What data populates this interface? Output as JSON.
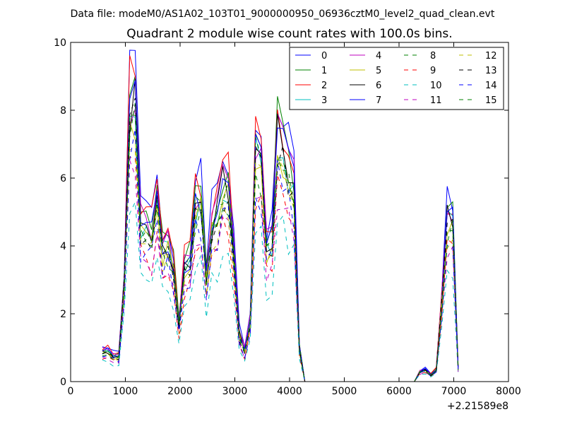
{
  "figure": {
    "suptitle": "Data file: modeM0/AS1A02_103T01_9000000950_06936cztM0_level2_quad_clean.evt"
  },
  "chart_data": {
    "type": "line",
    "title": "Quadrant 2 module wise count rates with 100.0s bins.",
    "xlabel": "",
    "ylabel": "",
    "xlim": [
      0,
      8000
    ],
    "ylim": [
      0,
      10
    ],
    "xticks": [
      0,
      1000,
      2000,
      3000,
      4000,
      5000,
      6000,
      7000,
      8000
    ],
    "yticks": [
      0,
      2,
      4,
      6,
      8,
      10
    ],
    "x_offset_label": "+2.21589e8",
    "grid": false,
    "legend_position": "top-right",
    "base": {
      "x": [
        580,
        680,
        780,
        880,
        980,
        1080,
        1180,
        1280,
        1380,
        1480,
        1580,
        1680,
        1780,
        1880,
        1980,
        2080,
        2180,
        2280,
        2380,
        2480,
        2580,
        2680,
        2780,
        2880,
        2980,
        3080,
        3180,
        3280,
        3380,
        3480,
        3580,
        3680,
        3780,
        3880,
        3980,
        4080,
        4180,
        4280,
        4380,
        4480,
        4580,
        4680,
        4780,
        4880,
        4980,
        5080,
        5180,
        5280,
        5380,
        5480,
        5580,
        5680,
        5780,
        5880,
        5980,
        6080,
        6180,
        6280,
        6380,
        6480,
        6580,
        6680,
        6780,
        6880,
        6980,
        7080
      ],
      "y": [
        0.9,
        0.9,
        0.75,
        0.75,
        3.0,
        8.0,
        8.3,
        4.6,
        4.7,
        4.3,
        5.2,
        3.9,
        4.0,
        3.3,
        1.7,
        3.4,
        3.6,
        5.2,
        5.3,
        3.1,
        4.6,
        4.9,
        5.8,
        5.8,
        3.8,
        1.4,
        0.9,
        1.8,
        6.8,
        6.5,
        4.0,
        4.2,
        7.2,
        6.9,
        6.2,
        5.8,
        1.0,
        0.0,
        0.0,
        0.0,
        0.0,
        0.0,
        0.0,
        0.0,
        0.0,
        0.0,
        0.0,
        0.0,
        0.0,
        0.0,
        0.0,
        0.0,
        0.0,
        0.0,
        0.0,
        0.0,
        0.0,
        0.0,
        0.3,
        0.35,
        0.2,
        0.35,
        2.4,
        4.8,
        4.8,
        0.4
      ]
    },
    "series": [
      {
        "name": "0",
        "color": "#0000ff",
        "dash": "solid",
        "scale": 1.13,
        "seed": 1
      },
      {
        "name": "1",
        "color": "#008000",
        "dash": "solid",
        "scale": 1.07,
        "seed": 2
      },
      {
        "name": "2",
        "color": "#ff0000",
        "dash": "solid",
        "scale": 1.1,
        "seed": 3
      },
      {
        "name": "3",
        "color": "#00bfbf",
        "dash": "solid",
        "scale": 0.98,
        "seed": 4
      },
      {
        "name": "4",
        "color": "#bf00bf",
        "dash": "solid",
        "scale": 1.04,
        "seed": 5
      },
      {
        "name": "5",
        "color": "#bfbf00",
        "dash": "solid",
        "scale": 0.95,
        "seed": 6
      },
      {
        "name": "6",
        "color": "#000000",
        "dash": "solid",
        "scale": 1.0,
        "seed": 7
      },
      {
        "name": "7",
        "color": "#0000ff",
        "dash": "solid",
        "scale": 1.02,
        "seed": 8
      },
      {
        "name": "8",
        "color": "#008000",
        "dash": "dashed",
        "scale": 0.97,
        "seed": 9
      },
      {
        "name": "9",
        "color": "#ff0000",
        "dash": "dashed",
        "scale": 0.8,
        "seed": 10
      },
      {
        "name": "10",
        "color": "#00bfbf",
        "dash": "dashed",
        "scale": 0.66,
        "seed": 11
      },
      {
        "name": "11",
        "color": "#bf00bf",
        "dash": "dashed",
        "scale": 0.78,
        "seed": 12
      },
      {
        "name": "12",
        "color": "#bfbf00",
        "dash": "dashed",
        "scale": 0.9,
        "seed": 13
      },
      {
        "name": "13",
        "color": "#000000",
        "dash": "dashed",
        "scale": 0.93,
        "seed": 14
      },
      {
        "name": "14",
        "color": "#0000ff",
        "dash": "dashed",
        "scale": 0.85,
        "seed": 15
      },
      {
        "name": "15",
        "color": "#008000",
        "dash": "dashed",
        "scale": 0.92,
        "seed": 16
      }
    ]
  }
}
